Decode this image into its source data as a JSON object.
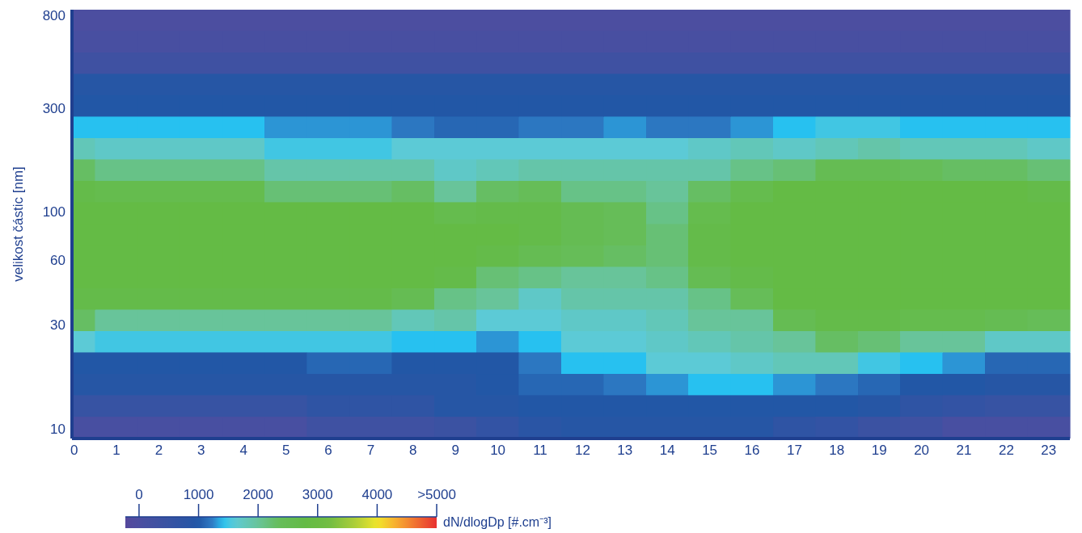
{
  "chart_data": {
    "type": "heatmap",
    "ylabel": "velikost částic  [nm]",
    "clabel": "dN/dlogDp [#.cm⁻³]",
    "x": [
      0,
      1,
      2,
      3,
      4,
      5,
      6,
      7,
      8,
      9,
      10,
      11,
      12,
      13,
      14,
      15,
      16,
      17,
      18,
      19,
      20,
      21,
      22,
      23
    ],
    "xlim": [
      -0.05,
      23.5
    ],
    "xticks": [
      0,
      1,
      2,
      3,
      4,
      5,
      6,
      7,
      8,
      9,
      10,
      11,
      12,
      13,
      14,
      15,
      16,
      17,
      18,
      19,
      20,
      21,
      22,
      23
    ],
    "ylim": [
      9,
      850
    ],
    "yticks": [
      10,
      30,
      60,
      100,
      300,
      800
    ],
    "log": true,
    "clim": [
      -230,
      5000
    ],
    "cticks": [
      0,
      1000,
      2000,
      3000,
      4000,
      {
        "value": 5000,
        "label": ">5000"
      }
    ],
    "cells": [
      [
        0,
        0,
        0,
        0,
        0,
        0,
        0,
        0,
        0,
        0,
        0,
        0,
        0,
        0,
        0,
        0,
        0,
        0,
        0,
        0,
        0,
        0,
        0,
        0
      ],
      [
        100,
        100,
        100,
        100,
        100,
        100,
        100,
        100,
        100,
        100,
        100,
        100,
        100,
        100,
        100,
        100,
        100,
        100,
        100,
        100,
        100,
        100,
        100,
        100
      ],
      [
        300,
        300,
        300,
        300,
        300,
        300,
        300,
        300,
        300,
        300,
        300,
        300,
        300,
        300,
        300,
        300,
        300,
        300,
        300,
        300,
        300,
        300,
        300,
        300
      ],
      [
        900,
        900,
        900,
        900,
        900,
        900,
        900,
        900,
        900,
        900,
        900,
        900,
        900,
        900,
        900,
        900,
        900,
        900,
        900,
        900,
        900,
        900,
        900,
        900
      ],
      [
        1000,
        1000,
        1000,
        1000,
        1000,
        1000,
        1000,
        1000,
        1000,
        1000,
        1000,
        1000,
        1000,
        1000,
        1000,
        1000,
        1000,
        1000,
        1000,
        1000,
        1000,
        1000,
        1000,
        1000
      ],
      [
        1400,
        1400,
        1400,
        1400,
        1400,
        1300,
        1300,
        1300,
        1200,
        1100,
        1100,
        1200,
        1200,
        1300,
        1200,
        1200,
        1300,
        1400,
        1500,
        1500,
        1400,
        1400,
        1400,
        1400
      ],
      [
        1800,
        1700,
        1700,
        1700,
        1700,
        1500,
        1500,
        1500,
        1600,
        1600,
        1600,
        1600,
        1600,
        1600,
        1600,
        1700,
        1800,
        1700,
        1800,
        1900,
        1800,
        1800,
        1800,
        1700
      ],
      [
        2300,
        2100,
        2100,
        2100,
        2100,
        1900,
        1900,
        1900,
        1900,
        1700,
        1800,
        1900,
        1900,
        1900,
        1900,
        1900,
        2100,
        2200,
        2500,
        2500,
        2400,
        2300,
        2300,
        2200
      ],
      [
        2700,
        2600,
        2600,
        2600,
        2600,
        2200,
        2200,
        2200,
        2300,
        2000,
        2300,
        2400,
        2100,
        2100,
        2000,
        2300,
        2600,
        2800,
        2800,
        2800,
        2800,
        2800,
        2800,
        2700
      ],
      [
        2800,
        2800,
        2800,
        2800,
        2800,
        2800,
        2800,
        2800,
        2800,
        2600,
        2700,
        2700,
        2500,
        2400,
        2100,
        2600,
        2800,
        2800,
        2800,
        2800,
        2800,
        2800,
        2800,
        2800
      ],
      [
        2800,
        2800,
        2800,
        2800,
        2800,
        2800,
        2800,
        2800,
        2800,
        2800,
        2800,
        2700,
        2500,
        2400,
        2200,
        2700,
        2800,
        2800,
        2800,
        2800,
        2800,
        2800,
        2800,
        2800
      ],
      [
        2800,
        2800,
        2800,
        2800,
        2800,
        2800,
        2800,
        2800,
        2800,
        2800,
        2700,
        2500,
        2400,
        2300,
        2200,
        2700,
        2800,
        2800,
        2800,
        2800,
        2800,
        2800,
        2800,
        2800
      ],
      [
        2800,
        2800,
        2800,
        2800,
        2800,
        2800,
        2800,
        2800,
        2800,
        2700,
        2200,
        2100,
        2000,
        2000,
        2100,
        2500,
        2700,
        2800,
        2800,
        2800,
        2800,
        2800,
        2800,
        2800
      ],
      [
        2700,
        2700,
        2700,
        2700,
        2700,
        2700,
        2700,
        2700,
        2500,
        2100,
        2000,
        1700,
        1900,
        1900,
        1900,
        2100,
        2400,
        2800,
        2800,
        2800,
        2800,
        2800,
        2800,
        2800
      ],
      [
        2300,
        2000,
        2000,
        2000,
        2000,
        2000,
        2000,
        2000,
        1800,
        1900,
        1600,
        1600,
        1700,
        1700,
        1800,
        2000,
        2000,
        2500,
        2700,
        2700,
        2600,
        2600,
        2500,
        2400
      ],
      [
        1600,
        1500,
        1500,
        1500,
        1500,
        1500,
        1500,
        1500,
        1400,
        1400,
        1300,
        1400,
        1600,
        1600,
        1700,
        1800,
        1900,
        2000,
        2300,
        2200,
        2000,
        2000,
        1700,
        1700
      ],
      [
        1000,
        1000,
        1000,
        1000,
        1000,
        1000,
        1100,
        1100,
        1000,
        1000,
        1000,
        1200,
        1400,
        1400,
        1600,
        1600,
        1700,
        1800,
        1800,
        1500,
        1400,
        1300,
        1100,
        1100
      ],
      [
        900,
        900,
        900,
        900,
        900,
        900,
        900,
        900,
        900,
        900,
        1000,
        1100,
        1100,
        1200,
        1300,
        1400,
        1400,
        1300,
        1200,
        1100,
        1000,
        1000,
        900,
        900
      ],
      [
        500,
        500,
        500,
        500,
        500,
        500,
        700,
        700,
        700,
        900,
        900,
        1000,
        1000,
        1000,
        1000,
        1000,
        1000,
        1000,
        1000,
        900,
        700,
        600,
        500,
        500
      ],
      [
        100,
        100,
        100,
        100,
        100,
        100,
        300,
        300,
        300,
        400,
        600,
        800,
        900,
        900,
        900,
        900,
        900,
        700,
        600,
        400,
        300,
        100,
        100,
        100
      ]
    ]
  }
}
